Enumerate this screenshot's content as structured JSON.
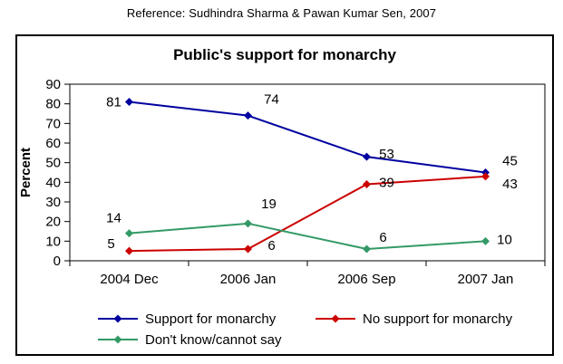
{
  "reference_text": "Reference: Sudhindra Sharma & Pawan Kumar Sen, 2007",
  "chart_data": {
    "type": "line",
    "title": "Public's support for monarchy",
    "ylabel": "Percent",
    "ylim": [
      0,
      90
    ],
    "ytick_step": 10,
    "grid": false,
    "legend_position": "bottom",
    "marker": "diamond",
    "categories": [
      "2004 Dec",
      "2006 Jan",
      "2006 Sep",
      "2007 Jan"
    ],
    "series": [
      {
        "name": "Support for monarchy",
        "color": "#0000A0",
        "values": [
          81,
          74,
          53,
          45
        ],
        "label_offsets": [
          [
            -17,
            0
          ],
          [
            26,
            -18
          ],
          [
            22,
            -3
          ],
          [
            27,
            -13
          ]
        ]
      },
      {
        "name": "No support for monarchy",
        "color": "#CC0000",
        "values": [
          5,
          6,
          39,
          43
        ],
        "label_offsets": [
          [
            -20,
            -8
          ],
          [
            26,
            -4
          ],
          [
            22,
            -2
          ],
          [
            27,
            8
          ]
        ]
      },
      {
        "name": "Don't know/cannot say",
        "color": "#339966",
        "values": [
          14,
          19,
          6,
          10
        ],
        "label_offsets": [
          [
            -17,
            -17
          ],
          [
            23,
            -22
          ],
          [
            18,
            -13
          ],
          [
            21,
            -2
          ]
        ]
      }
    ]
  }
}
